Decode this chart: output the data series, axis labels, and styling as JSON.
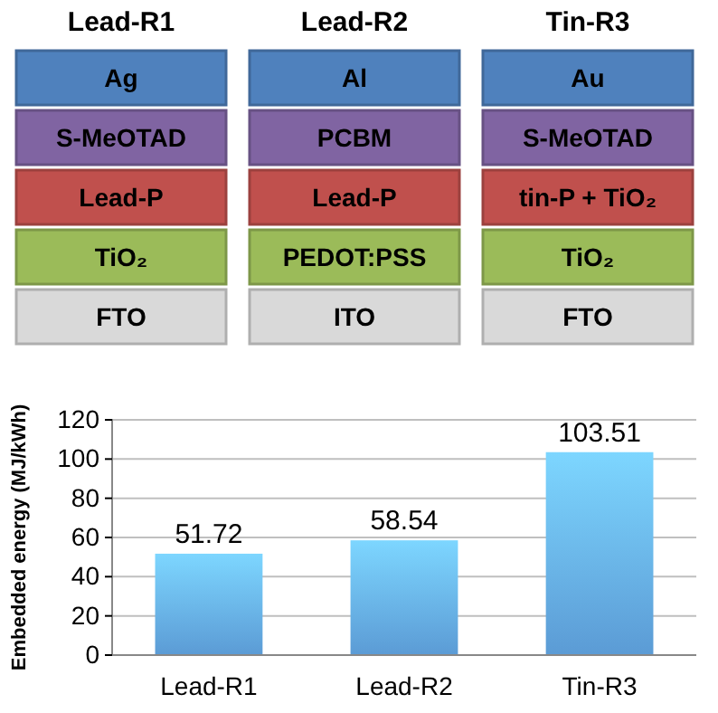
{
  "chart_data": [
    {
      "type": "other",
      "categories": [
        "Lead-R1",
        "Lead-R2",
        "Tin-R3"
      ],
      "colors": [
        "#4f81bd",
        "#8064a2",
        "#c0504d",
        "#9bbb59",
        "#d9d9d9"
      ],
      "annotations": [
        "Ag",
        "S-MeOTAD",
        "Lead-P",
        "TiO₂",
        "FTO",
        "Al",
        "PCBM",
        "Lead-P",
        "PEDOT:PSS",
        "ITO",
        "Au",
        "S-MeOTAD",
        "tin-P + TiO₂",
        "TiO₂",
        "FTO"
      ]
    },
    {
      "type": "bar",
      "categories": [
        "Lead-R1",
        "Lead-R2",
        "Tin-R3"
      ],
      "values": [
        51.72,
        58.54,
        103.51
      ],
      "color": "#5b9bd5",
      "ylabel": "Embedded energy (MJ/kWh)",
      "ylim": [
        0,
        120
      ],
      "yticks": [
        0,
        20,
        40,
        60,
        80,
        100,
        120
      ],
      "grid": "y",
      "data_labels": true
    }
  ]
}
